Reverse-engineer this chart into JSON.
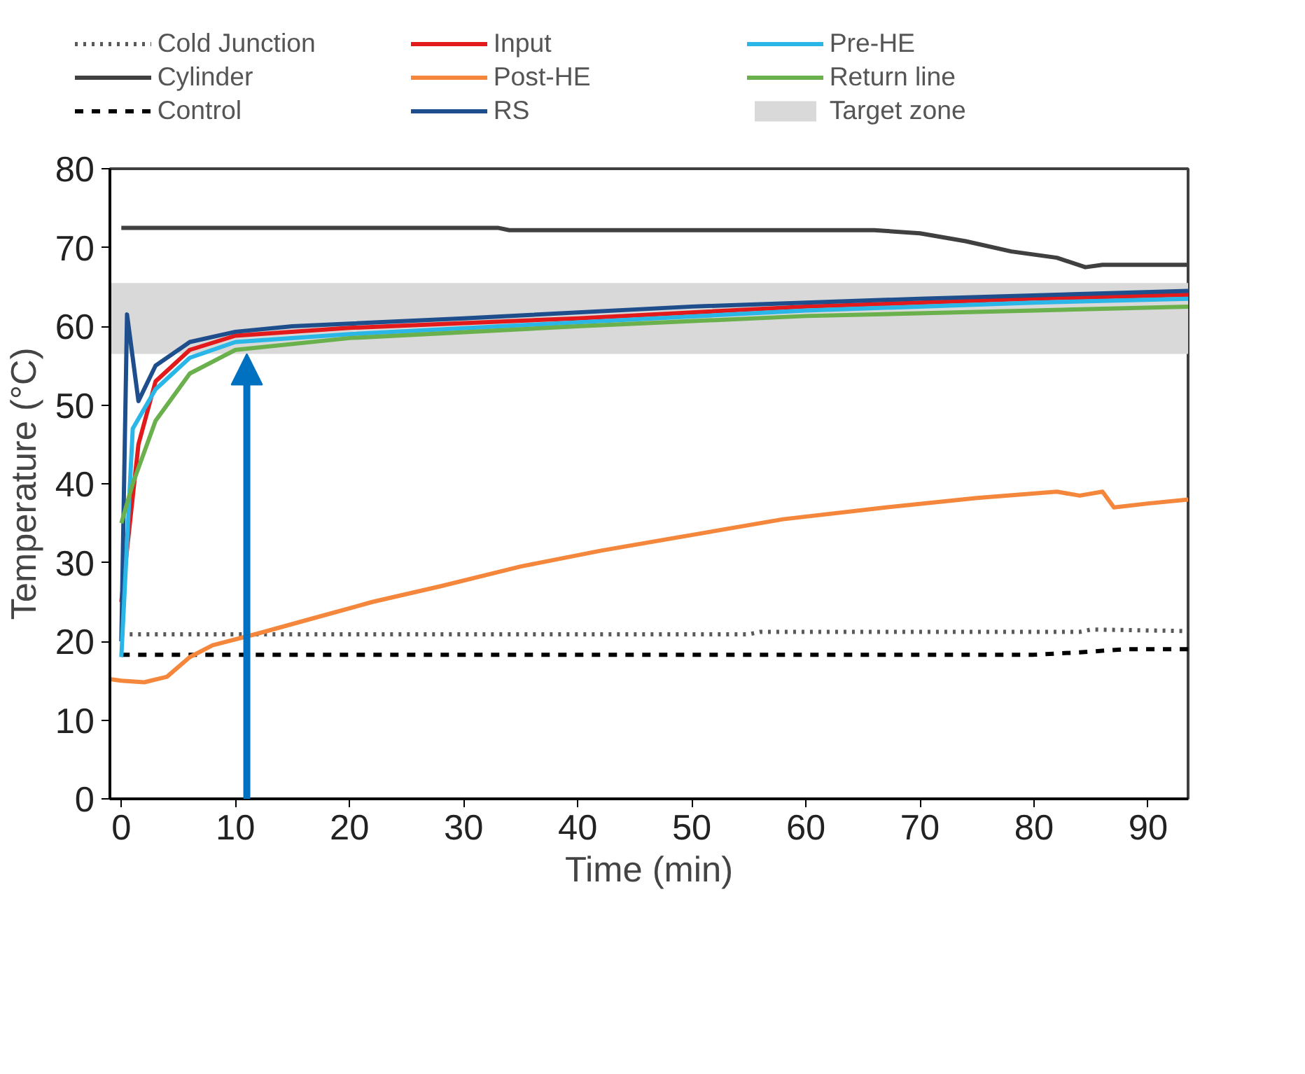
{
  "chart_data": {
    "type": "line",
    "xlabel": "Time (min)",
    "ylabel": "Temperature (°C)",
    "xlim": [
      -1,
      93.5
    ],
    "ylim": [
      0,
      80
    ],
    "xticks": [
      0,
      10,
      20,
      30,
      40,
      50,
      60,
      70,
      80,
      90
    ],
    "yticks": [
      0,
      10,
      20,
      30,
      40,
      50,
      60,
      70,
      80
    ],
    "grid": false,
    "legend": "top",
    "marker": "none",
    "bands": [
      {
        "axis": "y",
        "from": 56.5,
        "to": 65.5,
        "label": "Target zone",
        "color": "#d9d9d9"
      }
    ],
    "series": [
      {
        "name": "Cold Junction",
        "color": "#595959",
        "line_style": "dotted",
        "x": [
          0,
          20,
          40,
          55,
          56,
          70,
          84,
          85,
          93.5
        ],
        "values": [
          20.9,
          20.9,
          20.9,
          20.9,
          21.2,
          21.2,
          21.2,
          21.5,
          21.3
        ]
      },
      {
        "name": "Cylinder",
        "color": "#404040",
        "line_style": "solid",
        "x": [
          0,
          33,
          34,
          66,
          70,
          74,
          78,
          82,
          84.5,
          86,
          93.5
        ],
        "values": [
          72.5,
          72.5,
          72.2,
          72.2,
          71.8,
          70.8,
          69.5,
          68.7,
          67.5,
          67.8,
          67.8
        ]
      },
      {
        "name": "Control",
        "color": "#000000",
        "line_style": "dashed",
        "x": [
          0,
          20,
          40,
          60,
          80,
          84,
          88,
          93.5
        ],
        "values": [
          18.3,
          18.3,
          18.3,
          18.3,
          18.3,
          18.6,
          19,
          19
        ]
      },
      {
        "name": "Input",
        "color": "#e31a1c",
        "line_style": "solid",
        "x": [
          0,
          1.5,
          3,
          6,
          10,
          20,
          40,
          60,
          80,
          93.5
        ],
        "values": [
          25,
          45,
          53,
          57,
          58.8,
          59.8,
          61,
          62.5,
          63.5,
          64
        ]
      },
      {
        "name": "Post-HE",
        "color": "#f4873c",
        "line_style": "solid",
        "x": [
          -1,
          0,
          2,
          4,
          6,
          8,
          12,
          17,
          22,
          28,
          35,
          42,
          50,
          58,
          67,
          75,
          82,
          84,
          86,
          87,
          90,
          93.5
        ],
        "values": [
          15.2,
          15,
          14.8,
          15.5,
          18,
          19.5,
          21,
          23,
          25,
          27,
          29.5,
          31.5,
          33.5,
          35.5,
          37,
          38.2,
          39,
          38.5,
          39,
          37,
          37.5,
          38
        ]
      },
      {
        "name": "RS",
        "color": "#1f4e8c",
        "line_style": "solid",
        "x": [
          0,
          0.5,
          1.5,
          3,
          6,
          10,
          15,
          30,
          50,
          70,
          93.5
        ],
        "values": [
          20,
          61.5,
          50.5,
          55,
          58,
          59.3,
          60,
          61,
          62.5,
          63.5,
          64.5
        ]
      },
      {
        "name": "Pre-HE",
        "color": "#2ab7e8",
        "line_style": "solid",
        "x": [
          0,
          1,
          3,
          6,
          10,
          20,
          40,
          60,
          80,
          93.5
        ],
        "values": [
          18,
          47,
          52,
          56,
          58,
          59,
          60.5,
          62,
          63,
          63.5
        ]
      },
      {
        "name": "Return line",
        "color": "#6ab04c",
        "line_style": "solid",
        "x": [
          0,
          1,
          3,
          6,
          10,
          20,
          40,
          60,
          80,
          93.5
        ],
        "values": [
          35,
          40,
          48,
          54,
          57,
          58.5,
          60,
          61.3,
          62,
          62.5
        ]
      }
    ]
  }
}
